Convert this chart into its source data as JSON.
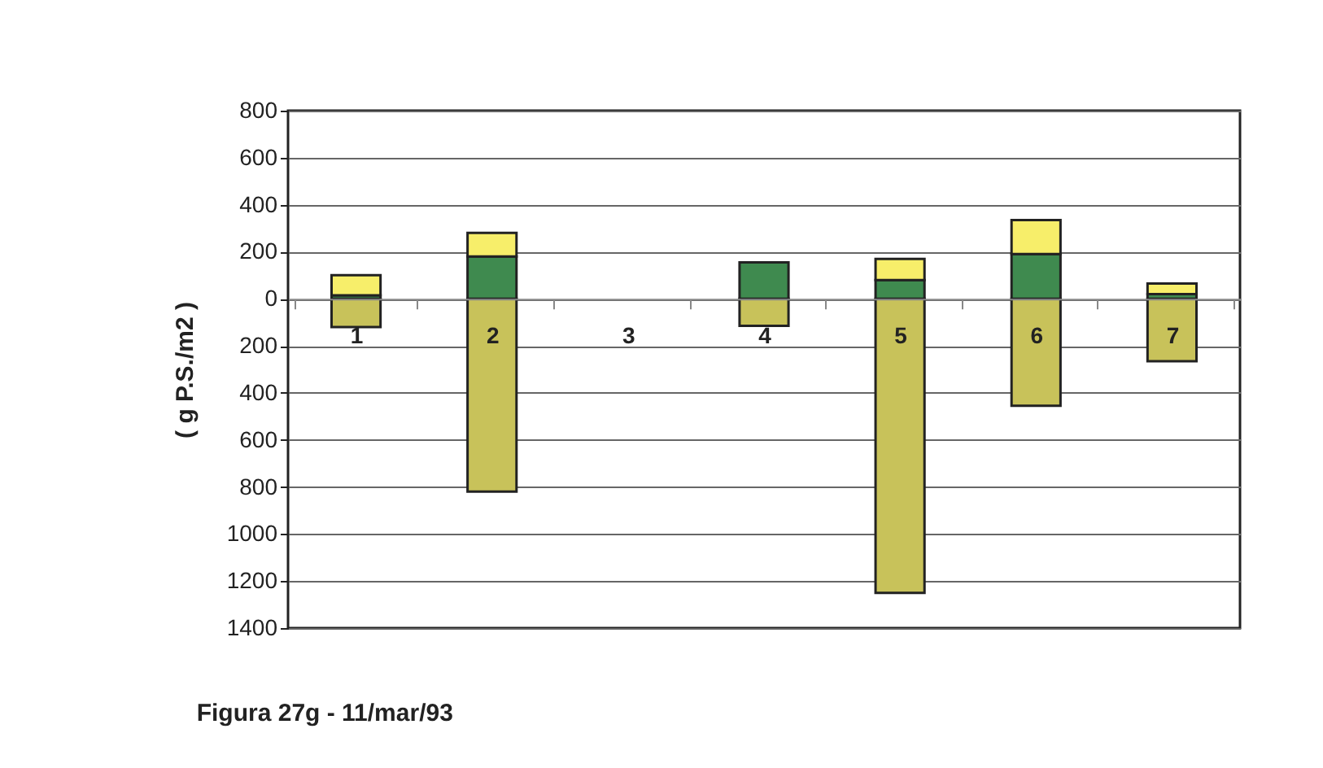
{
  "chart_data": {
    "type": "bar",
    "stacked": true,
    "title": "Figura 27g  -  11/mar/93",
    "ylabel": "( g P.S./m2 )",
    "categories": [
      "1",
      "2",
      "3",
      "4",
      "5",
      "6",
      "7"
    ],
    "series": [
      {
        "color": "#c8c25a",
        "values": [
          -120,
          -820,
          null,
          -115,
          -1250,
          -455,
          -265
        ]
      },
      {
        "color": "#3f8a4f",
        "values": [
          15,
          180,
          null,
          155,
          80,
          190,
          20
        ]
      },
      {
        "color": "#f7ee6a",
        "values": [
          85,
          100,
          null,
          null,
          90,
          145,
          45
        ]
      }
    ],
    "ylim": [
      -1400,
      800
    ],
    "yticks": [
      800,
      600,
      400,
      200,
      0,
      {
        "value": -200,
        "label": "200"
      },
      {
        "value": -400,
        "label": "400"
      },
      {
        "value": -600,
        "label": "600"
      },
      {
        "value": -800,
        "label": "800"
      },
      {
        "value": -1000,
        "label": "1000"
      },
      {
        "value": -1200,
        "label": "1200"
      },
      {
        "value": -1400,
        "label": "1400"
      }
    ],
    "grid": "y",
    "legend": false
  }
}
